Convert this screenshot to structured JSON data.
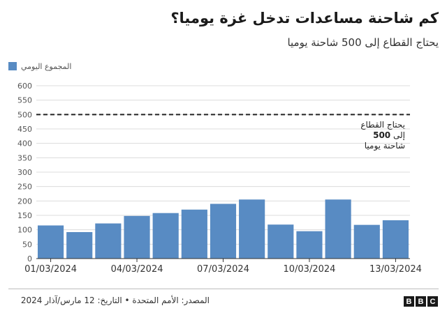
{
  "header": {
    "title": "كم شاحنة مساعدات تدخل غزة يوميا؟",
    "subtitle": "يحتاج القطاع إلى 500 شاحنة يوميا"
  },
  "legend": {
    "label": "المجموع اليومي",
    "color": "#588BC3"
  },
  "annotation": {
    "line1": "يحتاج القطاع",
    "line2": "إلى",
    "line2_value": "500",
    "line3": "شاحنة يوميا"
  },
  "footer": {
    "source": "المصدر: الأمم المتحدة • التاريخ: 12 مارس/آذار 2024",
    "logo_letters": [
      "B",
      "B",
      "C"
    ]
  },
  "chart_data": {
    "type": "bar",
    "categories": [
      "01/03/2024",
      "02/03/2024",
      "03/03/2024",
      "04/03/2024",
      "05/03/2024",
      "06/03/2024",
      "07/03/2024",
      "08/03/2024",
      "09/03/2024",
      "10/03/2024",
      "11/03/2024",
      "12/03/2024",
      "13/03/2024"
    ],
    "x_tick_labels": [
      "01/03/2024",
      "04/03/2024",
      "07/03/2024",
      "10/03/2024",
      "13/03/2024"
    ],
    "values": [
      115,
      92,
      122,
      148,
      158,
      170,
      190,
      205,
      118,
      95,
      205,
      117,
      133
    ],
    "ylim": [
      0,
      600
    ],
    "yticks": [
      0,
      50,
      100,
      150,
      200,
      250,
      300,
      350,
      400,
      450,
      500,
      550,
      600
    ],
    "reference_line": {
      "value": 500,
      "style": "dashed"
    },
    "grid": true,
    "bar_color": "#588BC3"
  }
}
